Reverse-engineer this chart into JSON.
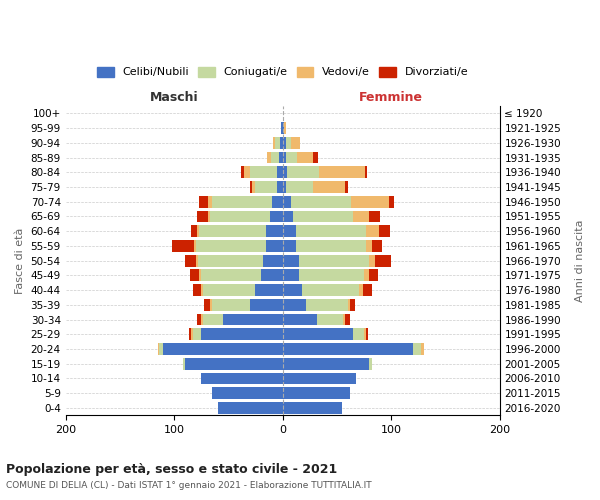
{
  "age_groups": [
    "0-4",
    "5-9",
    "10-14",
    "15-19",
    "20-24",
    "25-29",
    "30-34",
    "35-39",
    "40-44",
    "45-49",
    "50-54",
    "55-59",
    "60-64",
    "65-69",
    "70-74",
    "75-79",
    "80-84",
    "85-89",
    "90-94",
    "95-99",
    "100+"
  ],
  "birth_years": [
    "2016-2020",
    "2011-2015",
    "2006-2010",
    "2001-2005",
    "1996-2000",
    "1991-1995",
    "1986-1990",
    "1981-1985",
    "1976-1980",
    "1971-1975",
    "1966-1970",
    "1961-1965",
    "1956-1960",
    "1951-1955",
    "1946-1950",
    "1941-1945",
    "1936-1940",
    "1931-1935",
    "1926-1930",
    "1921-1925",
    "≤ 1920"
  ],
  "male_celibi": [
    60,
    65,
    75,
    90,
    110,
    75,
    55,
    30,
    25,
    20,
    18,
    15,
    15,
    12,
    10,
    5,
    5,
    3,
    2,
    1,
    0
  ],
  "male_coniugati": [
    0,
    0,
    0,
    2,
    4,
    8,
    18,
    35,
    48,
    55,
    60,
    65,
    62,
    55,
    55,
    20,
    25,
    8,
    5,
    0,
    0
  ],
  "male_vedovi": [
    0,
    0,
    0,
    0,
    1,
    1,
    2,
    2,
    2,
    2,
    2,
    2,
    2,
    2,
    4,
    3,
    6,
    3,
    2,
    0,
    0
  ],
  "male_divorziati": [
    0,
    0,
    0,
    0,
    0,
    2,
    4,
    5,
    8,
    8,
    10,
    20,
    5,
    10,
    8,
    2,
    2,
    0,
    0,
    0,
    0
  ],
  "female_nubili": [
    55,
    62,
    68,
    80,
    120,
    65,
    32,
    22,
    18,
    15,
    15,
    12,
    12,
    10,
    8,
    3,
    4,
    3,
    3,
    1,
    0
  ],
  "female_coniugate": [
    0,
    0,
    0,
    2,
    8,
    10,
    24,
    38,
    52,
    60,
    65,
    65,
    65,
    55,
    55,
    25,
    30,
    10,
    5,
    0,
    0
  ],
  "female_vedove": [
    0,
    0,
    0,
    0,
    2,
    2,
    2,
    2,
    4,
    5,
    5,
    5,
    12,
    15,
    35,
    30,
    42,
    15,
    8,
    2,
    0
  ],
  "female_divorziate": [
    0,
    0,
    0,
    0,
    0,
    2,
    4,
    5,
    8,
    8,
    15,
    10,
    10,
    10,
    5,
    2,
    2,
    5,
    0,
    0,
    0
  ],
  "color_celibi": "#4472c4",
  "color_coniugati": "#c5d9a0",
  "color_vedovi": "#f0b96c",
  "color_divorziati": "#cc2200",
  "legend_labels": [
    "Celibi/Nubili",
    "Coniugati/e",
    "Vedovi/e",
    "Divorziati/e"
  ],
  "title": "Popolazione per età, sesso e stato civile - 2021",
  "subtitle": "COMUNE DI DELIA (CL) - Dati ISTAT 1° gennaio 2021 - Elaborazione TUTTITALIA.IT",
  "label_maschi": "Maschi",
  "label_femmine": "Femmine",
  "label_fasce": "Fasce di età",
  "label_anni": "Anni di nascita",
  "xlim": 200,
  "bg_color": "#ffffff",
  "grid_color": "#cccccc"
}
